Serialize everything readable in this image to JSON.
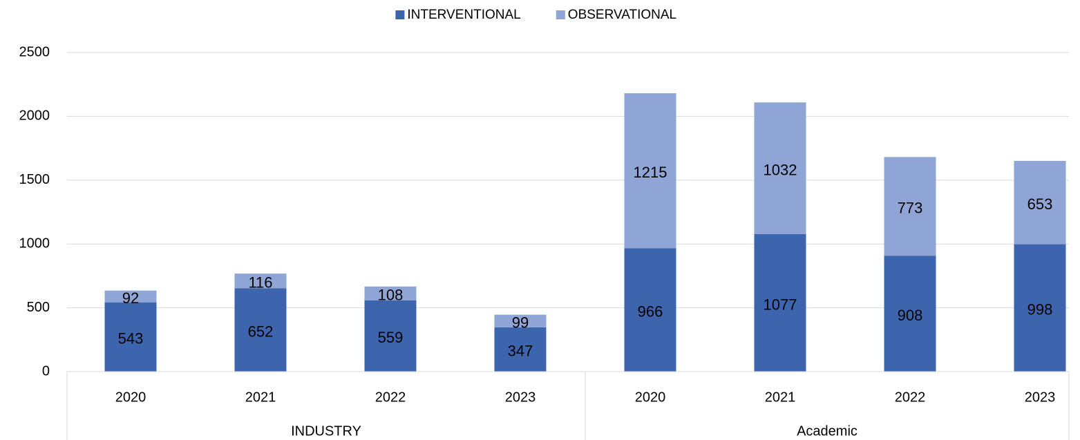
{
  "chart_data": {
    "type": "stacked_bar",
    "groups": [
      {
        "name": "INDUSTRY",
        "categories": [
          "2020",
          "2021",
          "2022",
          "2023"
        ]
      },
      {
        "name": "Academic",
        "categories": [
          "2020",
          "2021",
          "2022",
          "2023"
        ]
      }
    ],
    "series": [
      {
        "name": "INTERVENTIONAL",
        "color": "#3c65ad",
        "values": [
          543,
          652,
          559,
          347,
          966,
          1077,
          908,
          998
        ]
      },
      {
        "name": "OBSERVATIONAL",
        "color": "#8fa5d6",
        "values": [
          92,
          116,
          108,
          99,
          1215,
          1032,
          773,
          653
        ]
      }
    ],
    "ylim": [
      0,
      2500
    ],
    "yticks": [
      0,
      500,
      1000,
      1500,
      2000,
      2500
    ],
    "grid": true,
    "legend": "top"
  }
}
